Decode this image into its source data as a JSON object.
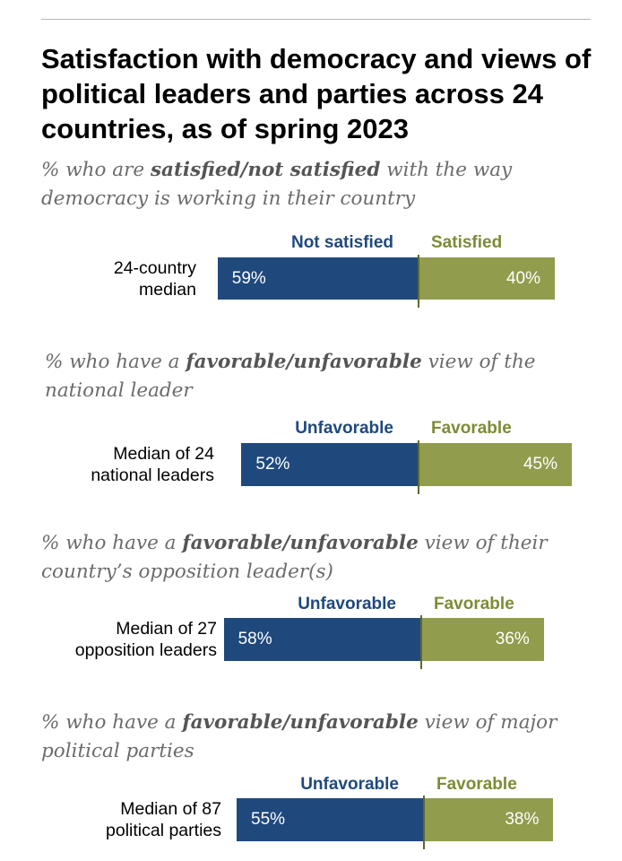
{
  "title": "Satisfaction with democracy and views of political leaders and parties across 24 countries, as of spring 2023",
  "colors": {
    "negative": "#1f497d",
    "positive": "#929c4d",
    "negative_text": "#1f497d",
    "positive_text": "#7d8b35"
  },
  "chart_data": [
    {
      "type": "bar",
      "orientation": "diverging-horizontal",
      "subtitle": {
        "pre": "% who are ",
        "emph": "satisfied/not satisfied",
        "post": " with the way democracy is working in their country"
      },
      "category_labels": [
        "Not satisfied",
        "Satisfied"
      ],
      "row_label": "24-country median",
      "row_label_lines": [
        "24-country",
        "median"
      ],
      "series": [
        {
          "name": "Not satisfied",
          "values": [
            59
          ],
          "label": "59%"
        },
        {
          "name": "Satisfied",
          "values": [
            40
          ],
          "label": "40%"
        }
      ]
    },
    {
      "type": "bar",
      "orientation": "diverging-horizontal",
      "subtitle": {
        "pre": "% who have a ",
        "emph": "favorable/unfavorable",
        "post": " view of the national leader"
      },
      "category_labels": [
        "Unfavorable",
        "Favorable"
      ],
      "row_label": "Median of 24 national leaders",
      "row_label_lines": [
        "Median of 24",
        "national leaders"
      ],
      "series": [
        {
          "name": "Unfavorable",
          "values": [
            52
          ],
          "label": "52%"
        },
        {
          "name": "Favorable",
          "values": [
            45
          ],
          "label": "45%"
        }
      ]
    },
    {
      "type": "bar",
      "orientation": "diverging-horizontal",
      "subtitle": {
        "pre": "% who have a ",
        "emph": "favorable/unfavorable",
        "post": " view of their country’s opposition leader(s)"
      },
      "category_labels": [
        "Unfavorable",
        "Favorable"
      ],
      "row_label": "Median of 27 opposition leaders",
      "row_label_lines": [
        "Median of 27",
        "opposition leaders"
      ],
      "series": [
        {
          "name": "Unfavorable",
          "values": [
            58
          ],
          "label": "58%"
        },
        {
          "name": "Favorable",
          "values": [
            36
          ],
          "label": "36%"
        }
      ]
    },
    {
      "type": "bar",
      "orientation": "diverging-horizontal",
      "subtitle": {
        "pre": "% who have a ",
        "emph": "favorable/unfavorable",
        "post": " view of major political parties"
      },
      "category_labels": [
        "Unfavorable",
        "Favorable"
      ],
      "row_label": "Median of 87 political parties",
      "row_label_lines": [
        "Median of 87",
        "political parties"
      ],
      "series": [
        {
          "name": "Unfavorable",
          "values": [
            55
          ],
          "label": "55%"
        },
        {
          "name": "Favorable",
          "values": [
            38
          ],
          "label": "38%"
        }
      ]
    }
  ]
}
